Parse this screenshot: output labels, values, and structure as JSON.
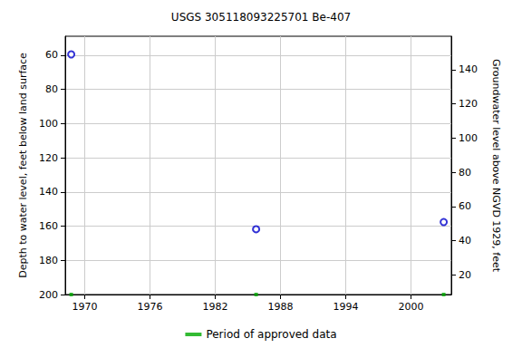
{
  "chart_data": {
    "type": "scatter",
    "title": "USGS 305118093225701 Be-407",
    "y_label": "Depth to water level, feet below land surface",
    "y2_label": "Groundwater level above NGVD 1929, feet",
    "x": [
      1968.75,
      1985.75,
      2003.0
    ],
    "series": [
      {
        "values": [
          59.5,
          161.8,
          157.6
        ],
        "color": "#0000cc",
        "marker": "circle"
      },
      {
        "name": "Period of approved data",
        "values": [
          200,
          200,
          200
        ],
        "color": "#00aa00",
        "marker": "square"
      }
    ],
    "xlim": [
      1968.2,
      2003.7
    ],
    "xticks": [
      1970,
      1976,
      1982,
      1988,
      1994,
      2000
    ],
    "ylim": [
      200,
      48.9
    ],
    "yticks": [
      60,
      80,
      100,
      120,
      140,
      160,
      180,
      200
    ],
    "y2lim": [
      8.5,
      159.6
    ],
    "y2ticks": [
      20,
      40,
      60,
      80,
      100,
      120,
      140
    ],
    "grid": true,
    "legend": "bottom"
  }
}
